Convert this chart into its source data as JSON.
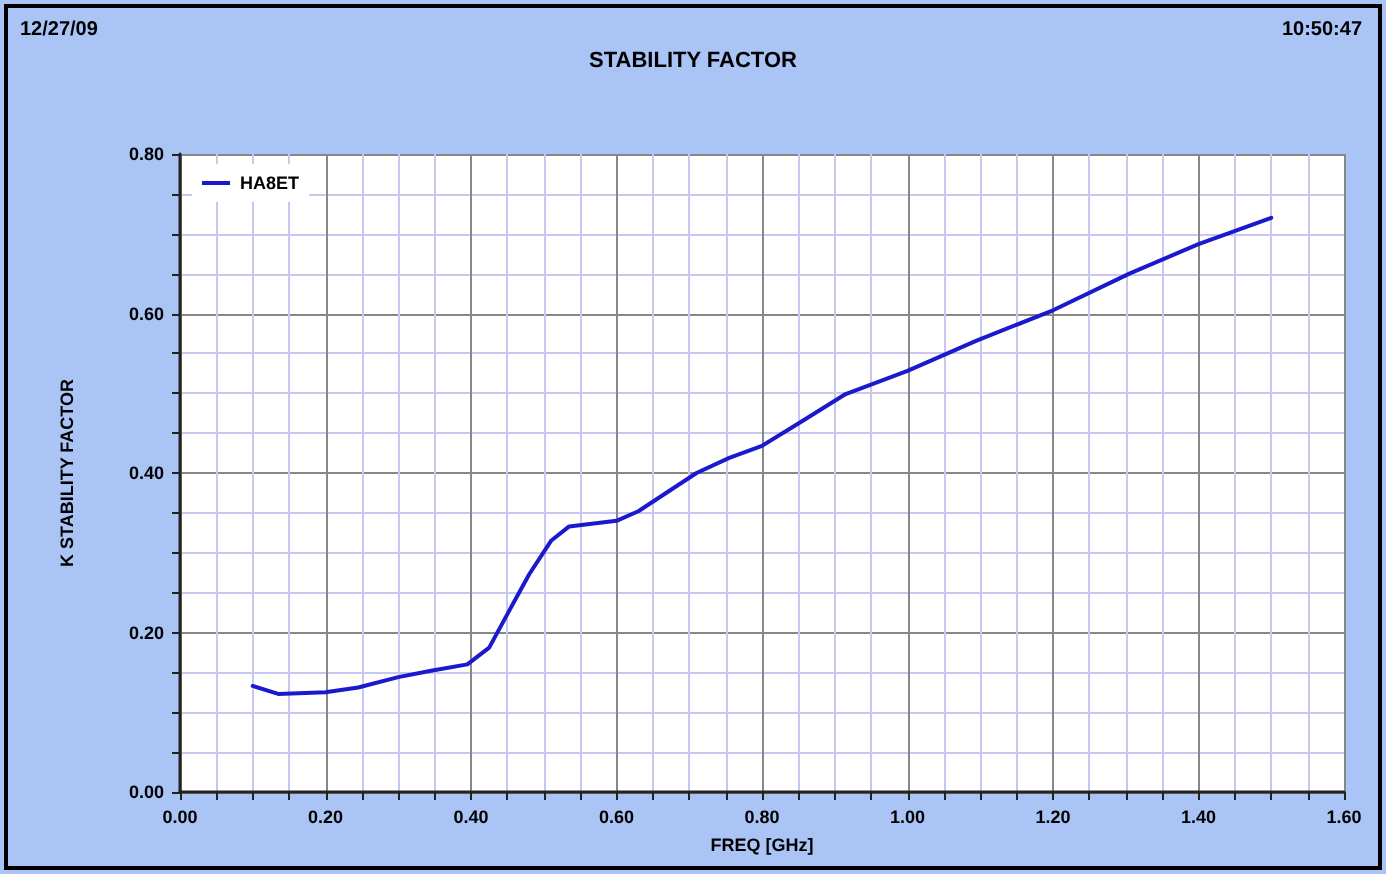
{
  "chart_data": {
    "type": "line",
    "title": "STABILITY FACTOR",
    "xlabel": "FREQ [GHz]",
    "ylabel": "K STABILITY FACTOR",
    "annotations": [
      "12/27/09",
      "10:50:47"
    ],
    "x": [
      0.1,
      0.135,
      0.2,
      0.245,
      0.3,
      0.345,
      0.395,
      0.425,
      0.45,
      0.48,
      0.51,
      0.535,
      0.6,
      0.63,
      0.665,
      0.71,
      0.755,
      0.8,
      0.85,
      0.915,
      1.0,
      1.095,
      1.2,
      1.305,
      1.4,
      1.5
    ],
    "series": [
      {
        "name": "HA8ET",
        "color": "#1a1acc",
        "values": [
          0.133,
          0.123,
          0.125,
          0.131,
          0.144,
          0.152,
          0.16,
          0.181,
          0.223,
          0.273,
          0.315,
          0.333,
          0.34,
          0.352,
          0.373,
          0.4,
          0.419,
          0.434,
          0.462,
          0.499,
          0.528,
          0.566,
          0.604,
          0.65,
          0.687,
          0.72
        ]
      }
    ],
    "xlim": [
      0,
      1.6
    ],
    "ylim": [
      0,
      0.8
    ],
    "xticks": [
      {
        "value": 0,
        "label": "0.00"
      },
      {
        "value": 0.05,
        "label": null
      },
      {
        "value": 0.1,
        "label": null
      },
      {
        "value": 0.15,
        "label": null
      },
      {
        "value": 0.2,
        "label": "0.20"
      },
      {
        "value": 0.25,
        "label": null
      },
      {
        "value": 0.3,
        "label": null
      },
      {
        "value": 0.35,
        "label": null
      },
      {
        "value": 0.4,
        "label": "0.40"
      },
      {
        "value": 0.45,
        "label": null
      },
      {
        "value": 0.5,
        "label": null
      },
      {
        "value": 0.55,
        "label": null
      },
      {
        "value": 0.6,
        "label": "0.60"
      },
      {
        "value": 0.65,
        "label": null
      },
      {
        "value": 0.7,
        "label": null
      },
      {
        "value": 0.75,
        "label": null
      },
      {
        "value": 0.8,
        "label": "0.80"
      },
      {
        "value": 0.85,
        "label": null
      },
      {
        "value": 0.9,
        "label": null
      },
      {
        "value": 0.95,
        "label": null
      },
      {
        "value": 1.0,
        "label": "1.00"
      },
      {
        "value": 1.05,
        "label": null
      },
      {
        "value": 1.1,
        "label": null
      },
      {
        "value": 1.15,
        "label": null
      },
      {
        "value": 1.2,
        "label": "1.20"
      },
      {
        "value": 1.25,
        "label": null
      },
      {
        "value": 1.3,
        "label": null
      },
      {
        "value": 1.35,
        "label": null
      },
      {
        "value": 1.4,
        "label": "1.40"
      },
      {
        "value": 1.45,
        "label": null
      },
      {
        "value": 1.5,
        "label": null
      },
      {
        "value": 1.55,
        "label": null
      },
      {
        "value": 1.6,
        "label": "1.60"
      }
    ],
    "yticks": [
      {
        "value": 0,
        "label": "0.00"
      },
      {
        "value": 0.05,
        "label": null
      },
      {
        "value": 0.1,
        "label": null
      },
      {
        "value": 0.15,
        "label": null
      },
      {
        "value": 0.2,
        "label": "0.20"
      },
      {
        "value": 0.25,
        "label": null
      },
      {
        "value": 0.3,
        "label": null
      },
      {
        "value": 0.35,
        "label": null
      },
      {
        "value": 0.4,
        "label": "0.40"
      },
      {
        "value": 0.45,
        "label": null
      },
      {
        "value": 0.5,
        "label": null
      },
      {
        "value": 0.55,
        "label": null
      },
      {
        "value": 0.6,
        "label": "0.60"
      },
      {
        "value": 0.65,
        "label": null
      },
      {
        "value": 0.7,
        "label": null
      },
      {
        "value": 0.75,
        "label": null
      },
      {
        "value": 0.8,
        "label": "0.80"
      }
    ],
    "grid": true,
    "legend": "top left",
    "marker": "none",
    "line_style": "solid"
  }
}
